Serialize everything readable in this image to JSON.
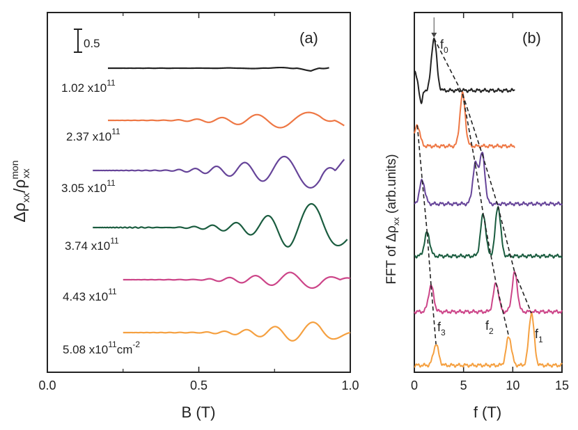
{
  "chart_data": [
    {
      "type": "line",
      "panel_label": "(a)",
      "xlabel": "B (T)",
      "ylabel": {
        "delta": "Δ",
        "rho": "ρ",
        "sub_xx": "xx",
        "slash": "/",
        "rho2": "ρ",
        "sup": "mon",
        "sub2": "xx"
      },
      "xlim": [
        0.0,
        1.0
      ],
      "x_ticks": [
        0.0,
        0.5,
        1.0
      ],
      "x_tick_labels": [
        "0.0",
        "0.5",
        "1.0"
      ],
      "scale_bar_label": "0.5",
      "series": [
        {
          "label_base": "1.02 x10",
          "label_exp": "11",
          "label_unit": "",
          "color": "#222222",
          "x_start": 0.2,
          "x_end": 0.93,
          "offset": 0.0,
          "amp_scale": 0.22,
          "samples": [
            [
              0.2,
              0.0
            ],
            [
              0.3,
              0.01
            ],
            [
              0.4,
              0.02
            ],
            [
              0.5,
              -0.02
            ],
            [
              0.6,
              0.05
            ],
            [
              0.7,
              -0.1
            ],
            [
              0.8,
              0.25
            ],
            [
              0.87,
              -0.5
            ],
            [
              0.93,
              0.55
            ]
          ]
        },
        {
          "label_base": "2.37 x10",
          "label_exp": "11",
          "label_unit": "",
          "color": "#ee7744",
          "x_start": 0.2,
          "x_end": 0.98,
          "offset": 0.0,
          "amp_scale": 0.5,
          "samples": [
            [
              0.2,
              0.0
            ],
            [
              0.4,
              0.02
            ],
            [
              0.5,
              0.1
            ],
            [
              0.6,
              0.25
            ],
            [
              0.7,
              0.45
            ],
            [
              0.8,
              0.6
            ],
            [
              0.9,
              0.6
            ],
            [
              0.98,
              -0.4
            ]
          ]
        },
        {
          "label_base": "3.05 x10",
          "label_exp": "11",
          "label_unit": "",
          "color": "#664499",
          "x_start": 0.15,
          "x_end": 0.98,
          "offset": 0.0,
          "amp_scale": 0.7,
          "samples": [
            [
              0.15,
              0.0
            ],
            [
              0.4,
              0.02
            ],
            [
              0.5,
              0.12
            ],
            [
              0.6,
              0.3
            ],
            [
              0.7,
              0.55
            ],
            [
              0.8,
              0.8
            ],
            [
              0.9,
              1.0
            ],
            [
              0.98,
              -0.6
            ]
          ]
        },
        {
          "label_base": "3.74 x10",
          "label_exp": "11",
          "label_unit": "",
          "color": "#1a5c3f",
          "x_start": 0.15,
          "x_end": 0.99,
          "offset": 0.0,
          "amp_scale": 0.95,
          "samples": [
            [
              0.15,
              0.0
            ],
            [
              0.3,
              -0.02
            ],
            [
              0.4,
              0.0
            ],
            [
              0.5,
              0.05
            ],
            [
              0.6,
              0.15
            ],
            [
              0.7,
              0.35
            ],
            [
              0.8,
              0.8
            ],
            [
              0.9,
              1.0
            ],
            [
              0.99,
              0.6
            ]
          ]
        },
        {
          "label_base": "4.43 x10",
          "label_exp": "11",
          "label_unit": "",
          "color": "#cc4488",
          "x_start": 0.25,
          "x_end": 1.0,
          "offset": 0.0,
          "amp_scale": 0.55,
          "samples": [
            [
              0.25,
              0.0
            ],
            [
              0.5,
              0.02
            ],
            [
              0.6,
              0.15
            ],
            [
              0.7,
              0.3
            ],
            [
              0.8,
              0.5
            ],
            [
              0.9,
              0.6
            ],
            [
              1.0,
              -0.3
            ]
          ]
        },
        {
          "label_base": "5.08 x10",
          "label_exp": "11",
          "label_unit": "cm-2",
          "color": "#f5a040",
          "x_start": 0.25,
          "x_end": 1.0,
          "offset": 0.0,
          "amp_scale": 0.6,
          "samples": [
            [
              0.25,
              0.0
            ],
            [
              0.5,
              0.02
            ],
            [
              0.6,
              0.1
            ],
            [
              0.7,
              0.25
            ],
            [
              0.8,
              0.5
            ],
            [
              0.9,
              0.7
            ],
            [
              1.0,
              0.1
            ]
          ]
        }
      ]
    },
    {
      "type": "line",
      "panel_label": "(b)",
      "xlabel": "f (T)",
      "ylabel": {
        "base": "FFT of Δρ",
        "sub": "xx",
        "suffix": " (arb.units)"
      },
      "xlim": [
        0,
        15
      ],
      "x_ticks": [
        0,
        5,
        10,
        15
      ],
      "x_tick_labels": [
        "0",
        "5",
        "10",
        "15"
      ],
      "series": [
        {
          "color": "#222222",
          "x_end": 10.2,
          "peaks": [
            [
              0.0,
              0.35
            ],
            [
              2.0,
              1.0
            ]
          ],
          "dip": [
            0.7,
            -0.25
          ],
          "baseline_slope": 0.0
        },
        {
          "color": "#ee7744",
          "x_end": 10.2,
          "peaks": [
            [
              0.3,
              0.4
            ],
            [
              4.9,
              1.0
            ]
          ],
          "dip": null,
          "baseline_slope": 0.0
        },
        {
          "color": "#664499",
          "x_end": 15.0,
          "peaks": [
            [
              0.8,
              0.45
            ],
            [
              6.2,
              0.75
            ],
            [
              6.9,
              0.95
            ]
          ],
          "dip": null,
          "baseline_slope": 0.0
        },
        {
          "color": "#1a5c3f",
          "x_end": 15.0,
          "peaks": [
            [
              1.3,
              0.45
            ],
            [
              7.0,
              0.8
            ],
            [
              8.5,
              0.95
            ]
          ],
          "dip": null,
          "baseline_slope": 0.0
        },
        {
          "color": "#cc4488",
          "x_end": 15.0,
          "peaks": [
            [
              1.7,
              0.5
            ],
            [
              8.3,
              0.55
            ],
            [
              10.2,
              0.75
            ]
          ],
          "dip": null,
          "baseline_slope": 0.0
        },
        {
          "color": "#f5a040",
          "x_end": 15.0,
          "peaks": [
            [
              2.2,
              0.4
            ],
            [
              9.6,
              0.55
            ],
            [
              11.9,
              1.0
            ]
          ],
          "dip": null,
          "baseline_slope": 0.0
        }
      ],
      "peak_labels": [
        {
          "base": "f",
          "sub": "0"
        },
        {
          "base": "f",
          "sub": "1"
        },
        {
          "base": "f",
          "sub": "2"
        },
        {
          "base": "f",
          "sub": "3"
        }
      ]
    }
  ]
}
